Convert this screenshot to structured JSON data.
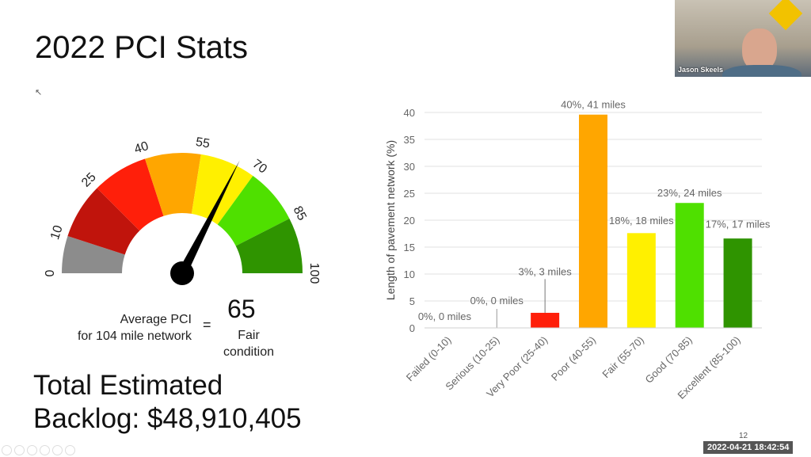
{
  "slide": {
    "title": "2022 PCI Stats",
    "avg_label_line1": "Average PCI",
    "avg_label_line2": "for 104 mile network",
    "equals": "=",
    "avg_value": "65",
    "condition_line1": "Fair",
    "condition_line2": "condition",
    "backlog_line1": "Total Estimated",
    "backlog_line2": "Backlog: $48,910,405",
    "page_number": "12"
  },
  "gauge": {
    "value": 65,
    "ticks": [
      "0",
      "10",
      "25",
      "40",
      "55",
      "70",
      "85",
      "100"
    ],
    "segments": [
      {
        "from": 0,
        "to": 10,
        "color": "#8c8c8c"
      },
      {
        "from": 10,
        "to": 25,
        "color": "#c0140c"
      },
      {
        "from": 25,
        "to": 40,
        "color": "#ff1f0a"
      },
      {
        "from": 40,
        "to": 55,
        "color": "#ffa600"
      },
      {
        "from": 55,
        "to": 70,
        "color": "#fff000"
      },
      {
        "from": 70,
        "to": 85,
        "color": "#4fe000"
      },
      {
        "from": 85,
        "to": 100,
        "color": "#2f9400"
      }
    ]
  },
  "chart_data": {
    "type": "bar",
    "ylabel": "Length of pavement network (%)",
    "ylim": [
      0,
      40
    ],
    "yticks": [
      "0",
      "5",
      "10",
      "15",
      "20",
      "25",
      "30",
      "35",
      "40"
    ],
    "grid": true,
    "categories": [
      "Failed (0-10)",
      "Serious (10-25)",
      "Very Poor (25-40)",
      "Poor (40-55)",
      "Fair (55-70)",
      "Good (70-85)",
      "Excellent (85-100)"
    ],
    "values": [
      0,
      0,
      2.8,
      39.6,
      17.6,
      23.2,
      16.6
    ],
    "labels": [
      "0%, 0 miles",
      "0%, 0 miles",
      "3%, 3 miles",
      "40%, 41 miles",
      "18%, 18 miles",
      "23%, 24 miles",
      "17%, 17 miles"
    ],
    "colors": [
      "#8c8c8c",
      "#c0140c",
      "#ff1f0a",
      "#ffa600",
      "#fff000",
      "#4fe000",
      "#2f9400"
    ]
  },
  "webcam": {
    "participant_name": "Jason Skeels"
  },
  "recording": {
    "timestamp": "2022-04-21 18:42:54"
  }
}
